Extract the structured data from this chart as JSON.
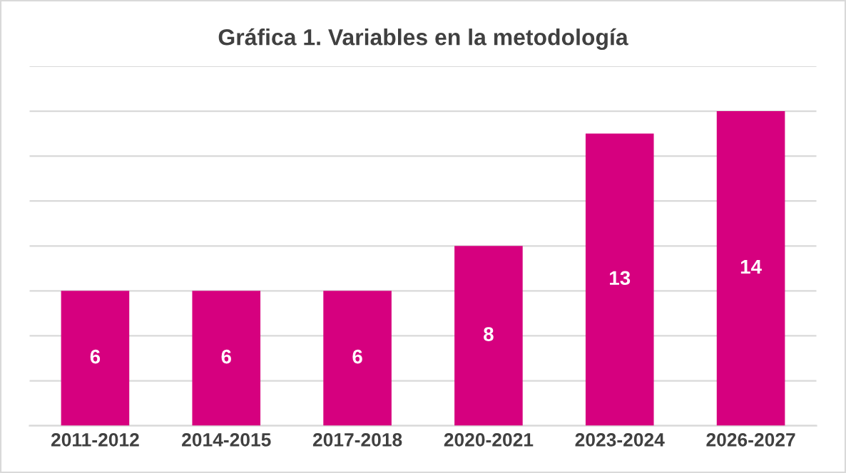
{
  "chart_data": {
    "type": "bar",
    "title": "Gráfica 1. Variables en la metodología",
    "categories": [
      "2011-2012",
      "2014-2015",
      "2017-2018",
      "2020-2021",
      "2023-2024",
      "2026-2027"
    ],
    "values": [
      6,
      6,
      6,
      8,
      13,
      14
    ],
    "color": "#d6007f",
    "ylim": [
      0,
      16
    ],
    "yticks": [
      {
        "value": 0,
        "label": null
      },
      {
        "value": 2,
        "label": null
      },
      {
        "value": 4,
        "label": null
      },
      {
        "value": 6,
        "label": null
      },
      {
        "value": 8,
        "label": null
      },
      {
        "value": 10,
        "label": null
      },
      {
        "value": 12,
        "label": null
      },
      {
        "value": 14,
        "label": null
      },
      {
        "value": 16,
        "label": null
      }
    ],
    "grid": "y",
    "tick_labels": "x",
    "data_labels": true
  }
}
